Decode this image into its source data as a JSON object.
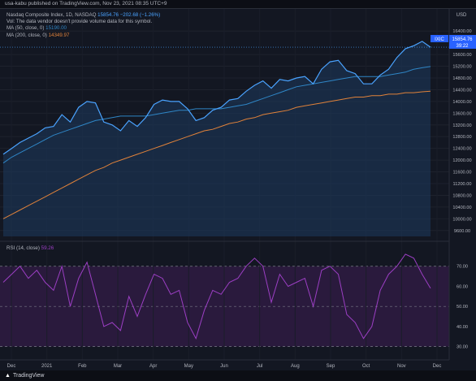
{
  "header": {
    "published": "usa-kabu published on TradingView.com, Nov 23, 2021 08:35 UTC+9"
  },
  "legend": {
    "instrument": "Nasdaq Composite Index, 1D, NASDAQ",
    "last": "15854.76",
    "change": "−202.68 (−1.26%)",
    "vol_note": "Vol: The data vendor doesn't provide volume data for this symbol.",
    "ma50_label": "MA (50, close, 0)",
    "ma50_value": "15190.00",
    "ma200_label": "MA (200, close, 0)",
    "ma200_value": "14349.97",
    "rsi_label": "RSI (14, close)",
    "rsi_value": "59.26"
  },
  "price_scale": {
    "currency": "USD",
    "ticks": [
      "16400.00",
      "15600.00",
      "15200.00",
      "14800.00",
      "14400.00",
      "14000.00",
      "13600.00",
      "13200.00",
      "12800.00",
      "12400.00",
      "12000.00",
      "11600.00",
      "11200.00",
      "10800.00",
      "10400.00",
      "10000.00",
      "9600.00"
    ],
    "symbol_badge": "IXIC",
    "last_price_badge": "15854.76",
    "countdown_badge": "39:22"
  },
  "rsi_scale": {
    "ticks": [
      "70.00",
      "60.00",
      "50.00",
      "40.00",
      "30.00"
    ],
    "levels": [
      30,
      50,
      70
    ]
  },
  "time_axis": {
    "ticks": [
      "Dec",
      "2021",
      "Feb",
      "Mar",
      "Apr",
      "May",
      "Jun",
      "Jul",
      "Aug",
      "Sep",
      "Oct",
      "Nov",
      "Dec"
    ]
  },
  "footer": {
    "brand": "TradingView"
  },
  "colors": {
    "price_line": "#4aa3ff",
    "price_fill": "#1d3b5e",
    "ma50": "#2f86c6",
    "ma200": "#e0823a",
    "rsi_line": "#9c3fc4",
    "rsi_band": "#2a1a3d",
    "accent": "#2962ff"
  },
  "chart_data": [
    {
      "type": "line",
      "title": "Nasdaq Composite Index, 1D, NASDAQ",
      "x": [
        "2020-11-30",
        "2020-12-07",
        "2020-12-14",
        "2020-12-21",
        "2020-12-28",
        "2021-01-04",
        "2021-01-11",
        "2021-01-19",
        "2021-01-25",
        "2021-02-01",
        "2021-02-08",
        "2021-02-16",
        "2021-02-22",
        "2021-03-01",
        "2021-03-08",
        "2021-03-15",
        "2021-03-22",
        "2021-03-29",
        "2021-04-05",
        "2021-04-12",
        "2021-04-19",
        "2021-04-26",
        "2021-05-03",
        "2021-05-10",
        "2021-05-17",
        "2021-05-24",
        "2021-06-01",
        "2021-06-07",
        "2021-06-14",
        "2021-06-21",
        "2021-06-28",
        "2021-07-06",
        "2021-07-12",
        "2021-07-19",
        "2021-07-26",
        "2021-08-02",
        "2021-08-09",
        "2021-08-16",
        "2021-08-23",
        "2021-08-30",
        "2021-09-07",
        "2021-09-13",
        "2021-09-20",
        "2021-09-27",
        "2021-10-04",
        "2021-10-11",
        "2021-10-18",
        "2021-10-25",
        "2021-11-01",
        "2021-11-08",
        "2021-11-15",
        "2021-11-22"
      ],
      "series": [
        {
          "name": "Nasdaq Composite Index",
          "values": [
            12200,
            12400,
            12600,
            12750,
            12900,
            13100,
            13150,
            13550,
            13300,
            13800,
            14000,
            13950,
            13300,
            13200,
            13000,
            13350,
            13150,
            13450,
            13900,
            14050,
            14000,
            14000,
            13750,
            13350,
            13450,
            13700,
            13800,
            14050,
            14100,
            14350,
            14550,
            14700,
            14450,
            14750,
            14700,
            14800,
            14850,
            14600,
            15100,
            15350,
            15400,
            15050,
            14950,
            14600,
            14600,
            14900,
            15100,
            15500,
            15800,
            15900,
            16050,
            15850
          ]
        },
        {
          "name": "MA (50, close, 0)",
          "values": [
            11900,
            12100,
            12250,
            12400,
            12550,
            12700,
            12850,
            12950,
            13050,
            13150,
            13250,
            13350,
            13400,
            13450,
            13500,
            13500,
            13500,
            13500,
            13550,
            13600,
            13650,
            13700,
            13700,
            13750,
            13750,
            13750,
            13750,
            13800,
            13850,
            13900,
            14000,
            14100,
            14200,
            14300,
            14400,
            14500,
            14550,
            14600,
            14650,
            14700,
            14750,
            14800,
            14850,
            14850,
            14850,
            14850,
            14900,
            14950,
            15000,
            15100,
            15150,
            15190
          ]
        },
        {
          "name": "MA (200, close, 0)",
          "values": [
            10000,
            10150,
            10300,
            10450,
            10600,
            10750,
            10900,
            11050,
            11200,
            11350,
            11500,
            11650,
            11750,
            11900,
            12000,
            12100,
            12200,
            12300,
            12400,
            12500,
            12600,
            12700,
            12800,
            12900,
            13000,
            13050,
            13150,
            13250,
            13300,
            13400,
            13450,
            13550,
            13600,
            13650,
            13700,
            13800,
            13850,
            13900,
            13950,
            14000,
            14050,
            14100,
            14150,
            14150,
            14200,
            14200,
            14250,
            14250,
            14300,
            14300,
            14330,
            14350
          ]
        }
      ],
      "ylabel": "USD",
      "ylim": [
        9400,
        16600
      ]
    },
    {
      "type": "line",
      "title": "RSI (14, close)",
      "x": [
        "2020-11-30",
        "2020-12-07",
        "2020-12-14",
        "2020-12-21",
        "2020-12-28",
        "2021-01-04",
        "2021-01-11",
        "2021-01-19",
        "2021-01-25",
        "2021-02-01",
        "2021-02-08",
        "2021-02-16",
        "2021-02-22",
        "2021-03-01",
        "2021-03-08",
        "2021-03-15",
        "2021-03-22",
        "2021-03-29",
        "2021-04-05",
        "2021-04-12",
        "2021-04-19",
        "2021-04-26",
        "2021-05-03",
        "2021-05-10",
        "2021-05-17",
        "2021-05-24",
        "2021-06-01",
        "2021-06-07",
        "2021-06-14",
        "2021-06-21",
        "2021-06-28",
        "2021-07-06",
        "2021-07-12",
        "2021-07-19",
        "2021-07-26",
        "2021-08-02",
        "2021-08-09",
        "2021-08-16",
        "2021-08-23",
        "2021-08-30",
        "2021-09-07",
        "2021-09-13",
        "2021-09-20",
        "2021-09-27",
        "2021-10-04",
        "2021-10-11",
        "2021-10-18",
        "2021-10-25",
        "2021-11-01",
        "2021-11-08",
        "2021-11-15",
        "2021-11-22"
      ],
      "series": [
        {
          "name": "RSI (14, close)",
          "values": [
            62,
            66,
            70,
            64,
            68,
            62,
            58,
            70,
            50,
            64,
            72,
            56,
            40,
            42,
            38,
            55,
            45,
            56,
            66,
            64,
            56,
            58,
            42,
            34,
            48,
            58,
            56,
            62,
            64,
            70,
            74,
            70,
            52,
            66,
            60,
            62,
            64,
            50,
            68,
            70,
            66,
            46,
            42,
            34,
            40,
            58,
            66,
            70,
            76,
            74,
            66,
            59
          ]
        }
      ],
      "ylim": [
        25,
        80
      ]
    }
  ]
}
